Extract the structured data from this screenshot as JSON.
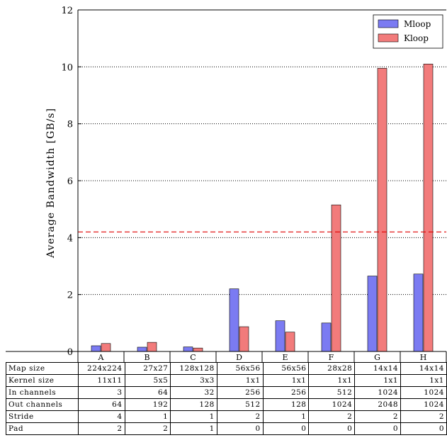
{
  "chart_data": {
    "type": "bar",
    "categories": [
      "A",
      "B",
      "C",
      "D",
      "E",
      "F",
      "G",
      "H"
    ],
    "series": [
      {
        "name": "Mloop",
        "color": "#7b7bf2",
        "values": [
          0.2,
          0.15,
          0.16,
          2.2,
          1.08,
          1.0,
          2.65,
          2.72
        ]
      },
      {
        "name": "Kloop",
        "color": "#f27b7b",
        "values": [
          0.28,
          0.32,
          0.12,
          0.87,
          0.68,
          5.15,
          9.95,
          10.1
        ]
      }
    ],
    "reference_line": {
      "value": 4.2,
      "color": "#e00000",
      "style": "dashed"
    },
    "ylabel": "Average Bandwidth [GB/s]",
    "ylim": [
      0,
      12
    ],
    "yticks": [
      "0",
      "2",
      "4",
      "6",
      "8",
      "10",
      "12"
    ],
    "grid": "horizontal dotted",
    "legend_position": "top-right",
    "table": {
      "rows": [
        {
          "label": "Map size",
          "values": [
            "224x224",
            "27x27",
            "128x128",
            "56x56",
            "56x56",
            "28x28",
            "14x14",
            "14x14"
          ]
        },
        {
          "label": "Kernel size",
          "values": [
            "11x11",
            "5x5",
            "3x3",
            "1x1",
            "1x1",
            "1x1",
            "1x1",
            "1x1"
          ]
        },
        {
          "label": "In channels",
          "values": [
            "3",
            "64",
            "32",
            "256",
            "256",
            "512",
            "1024",
            "1024"
          ]
        },
        {
          "label": "Out channels",
          "values": [
            "64",
            "192",
            "128",
            "512",
            "128",
            "1024",
            "2048",
            "1024"
          ]
        },
        {
          "label": "Stride",
          "values": [
            "4",
            "1",
            "1",
            "2",
            "1",
            "2",
            "2",
            "2"
          ]
        },
        {
          "label": "Pad",
          "values": [
            "2",
            "2",
            "1",
            "0",
            "0",
            "0",
            "0",
            "0"
          ]
        }
      ]
    }
  }
}
